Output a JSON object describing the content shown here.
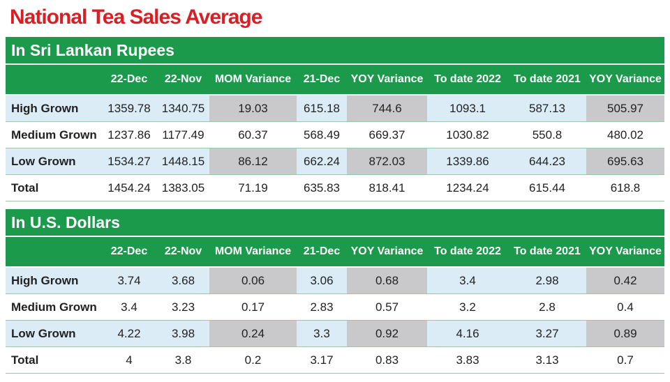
{
  "title": "National Tea Sales Average",
  "sections": [
    {
      "title": "In Sri Lankan Rupees",
      "columns": [
        "22-Dec",
        "22-Nov",
        "MOM Variance",
        "21-Dec",
        "YOY Variance",
        "To date 2022",
        "To date 2021",
        "YOY Variance"
      ],
      "rows": [
        {
          "label": "High Grown",
          "values": [
            "1359.78",
            "1340.75",
            "19.03",
            "615.18",
            "744.6",
            "1093.1",
            "587.13",
            "505.97"
          ]
        },
        {
          "label": "Medium Grown",
          "values": [
            "1237.86",
            "1177.49",
            "60.37",
            "568.49",
            "669.37",
            "1030.82",
            "550.8",
            "480.02"
          ]
        },
        {
          "label": "Low Grown",
          "values": [
            "1534.27",
            "1448.15",
            "86.12",
            "662.24",
            "872.03",
            "1339.86",
            "644.23",
            "695.63"
          ]
        },
        {
          "label": "Total",
          "values": [
            "1454.24",
            "1383.05",
            "71.19",
            "635.83",
            "818.41",
            "1234.24",
            "615.44",
            "618.8"
          ]
        }
      ]
    },
    {
      "title": "In U.S. Dollars",
      "columns": [
        "22-Dec",
        "22-Nov",
        "MOM Variance",
        "21-Dec",
        "YOY Variance",
        "To date 2022",
        "To date 2021",
        "YOY Variance"
      ],
      "rows": [
        {
          "label": "High Grown",
          "values": [
            "3.74",
            "3.68",
            "0.06",
            "3.06",
            "0.68",
            "3.4",
            "2.98",
            "0.42"
          ]
        },
        {
          "label": "Medium Grown",
          "values": [
            "3.4",
            "3.23",
            "0.17",
            "2.83",
            "0.57",
            "3.2",
            "2.8",
            "0.4"
          ]
        },
        {
          "label": "Low Grown",
          "values": [
            "4.22",
            "3.98",
            "0.24",
            "3.3",
            "0.92",
            "4.16",
            "3.27",
            "0.89"
          ]
        },
        {
          "label": "Total",
          "values": [
            "4",
            "3.8",
            "0.2",
            "3.17",
            "0.83",
            "3.83",
            "3.13",
            "0.7"
          ]
        }
      ]
    }
  ]
}
